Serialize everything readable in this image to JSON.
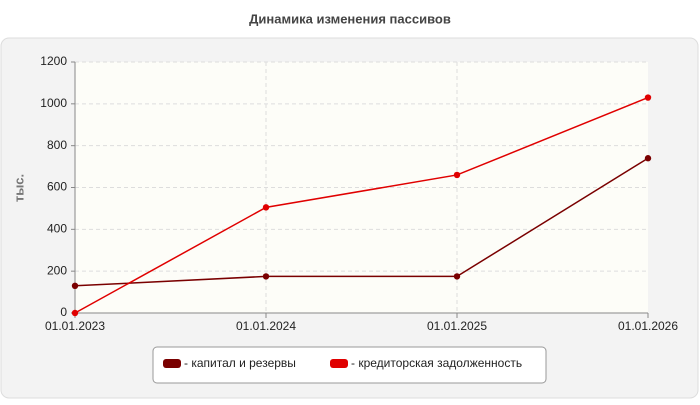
{
  "chart_data": {
    "type": "line",
    "title": "Динамика изменения пассивов",
    "y_label": "тыс.",
    "categories": [
      "01.01.2023",
      "01.01.2024",
      "01.01.2025",
      "01.01.2026"
    ],
    "series": [
      {
        "name": "- капитал и резервы",
        "color": "#7a0000",
        "values": [
          130,
          175,
          175,
          740
        ]
      },
      {
        "name": "- кредиторская задолженность",
        "color": "#e00000",
        "values": [
          0,
          505,
          660,
          1030
        ]
      }
    ],
    "ylim": [
      0,
      1200
    ],
    "yticks": [
      0,
      200,
      400,
      600,
      800,
      1000,
      1200
    ],
    "grid": true
  }
}
